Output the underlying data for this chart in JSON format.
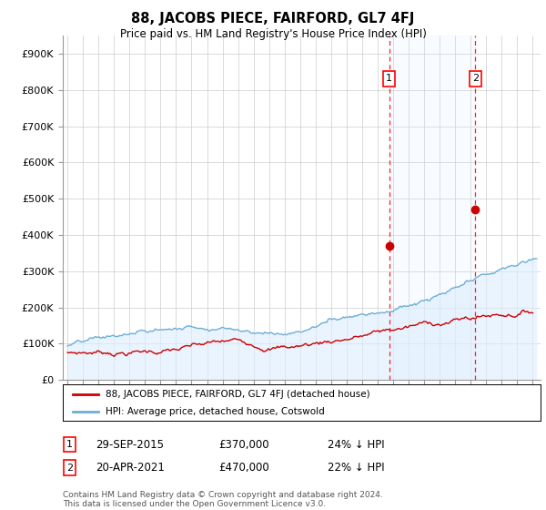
{
  "title": "88, JACOBS PIECE, FAIRFORD, GL7 4FJ",
  "subtitle": "Price paid vs. HM Land Registry's House Price Index (HPI)",
  "ylabel_ticks": [
    "£0",
    "£100K",
    "£200K",
    "£300K",
    "£400K",
    "£500K",
    "£600K",
    "£700K",
    "£800K",
    "£900K"
  ],
  "ytick_values": [
    0,
    100000,
    200000,
    300000,
    400000,
    500000,
    600000,
    700000,
    800000,
    900000
  ],
  "ylim": [
    0,
    950000
  ],
  "xlim_start": 1994.7,
  "xlim_end": 2025.5,
  "hpi_color": "#6baed6",
  "hpi_fill_color": "#ddeeff",
  "price_color": "#cc0000",
  "marker1_x": 2015.75,
  "marker1_y": 370000,
  "marker2_x": 2021.3,
  "marker2_y": 470000,
  "legend_line1": "88, JACOBS PIECE, FAIRFORD, GL7 4FJ (detached house)",
  "legend_line2": "HPI: Average price, detached house, Cotswold",
  "annot1_date": "29-SEP-2015",
  "annot1_price": "£370,000",
  "annot1_hpi": "24% ↓ HPI",
  "annot2_date": "20-APR-2021",
  "annot2_price": "£470,000",
  "annot2_hpi": "22% ↓ HPI",
  "footnote": "Contains HM Land Registry data © Crown copyright and database right 2024.\nThis data is licensed under the Open Government Licence v3.0.",
  "background_color": "#ffffff",
  "grid_color": "#cccccc"
}
